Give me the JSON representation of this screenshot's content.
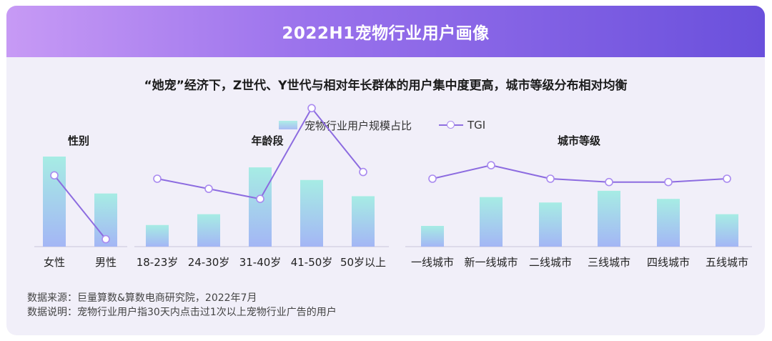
{
  "header": {
    "title": "2022H1宠物行业用户画像"
  },
  "subtitle": "“她宠”经济下，Z世代、Y世代与相对年长群体的用户集中度更高，城市等级分布相对均衡",
  "legend": {
    "bar_label": "宠物行业用户规模占比",
    "line_label": "TGI"
  },
  "colors": {
    "bar_top": "#a6ece4",
    "bar_bottom": "#a4b6f5",
    "line": "#8c6be0",
    "marker_stroke": "#a98af0",
    "banner_start": "#c79af5",
    "banner_end": "#6a50dc"
  },
  "chart_data": [
    {
      "type": "bar",
      "title": "性别",
      "categories": [
        "女性",
        "男性"
      ],
      "series": [
        {
          "name": "宠物行业用户规模占比",
          "values": [
            100,
            59
          ]
        },
        {
          "name": "TGI",
          "values": [
            77,
            58
          ]
        }
      ]
    },
    {
      "type": "bar",
      "title": "年龄段",
      "categories": [
        "18-23岁",
        "24-30岁",
        "31-40岁",
        "41-50岁",
        "50岁以上"
      ],
      "series": [
        {
          "name": "宠物行业用户规模占比",
          "values": [
            24,
            36,
            88,
            74,
            56
          ]
        },
        {
          "name": "TGI",
          "values": [
            76,
            73,
            70,
            97,
            78
          ]
        }
      ]
    },
    {
      "type": "bar",
      "title": "城市等级",
      "categories": [
        "一线城市",
        "新一线城市",
        "二线城市",
        "三线城市",
        "四线城市",
        "五线城市"
      ],
      "series": [
        {
          "name": "宠物行业用户规模占比",
          "values": [
            23,
            55,
            49,
            62,
            53,
            36
          ]
        },
        {
          "name": "TGI",
          "values": [
            76,
            80,
            76,
            75,
            75,
            76
          ]
        }
      ]
    }
  ],
  "footer": {
    "source": "数据来源：巨量算数&算数电商研究院，2022年7月",
    "note": "数据说明：宠物行业用户指30天内点击过1次以上宠物行业广告的用户"
  }
}
